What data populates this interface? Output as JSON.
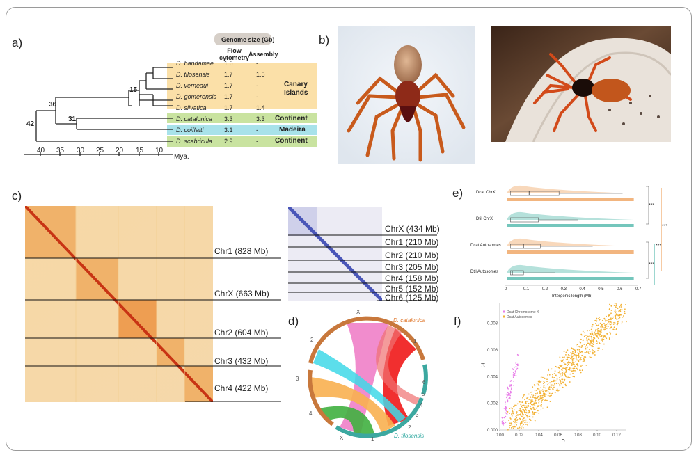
{
  "panels": {
    "a": "a)",
    "b": "b)",
    "c": "c)",
    "d": "d)",
    "e": "e)",
    "f": "f)"
  },
  "tree": {
    "genome_header": "Genome size (Gb)",
    "col_flow": "Flow\ncytometry",
    "col_flow_1": "Flow",
    "col_flow_2": "cytometry",
    "col_assembly": "Assembly",
    "species": [
      {
        "name": "D. bandamae",
        "flow": "1.6",
        "assembly": "-"
      },
      {
        "name": "D. tilosensis",
        "flow": "1.7",
        "assembly": "1.5"
      },
      {
        "name": "D. verneaui",
        "flow": "1.7",
        "assembly": "-"
      },
      {
        "name": "D. gomerensis",
        "flow": "1.7",
        "assembly": "-"
      },
      {
        "name": "D. silvatica",
        "flow": "1.7",
        "assembly": "1.4"
      },
      {
        "name": "D. catalonica",
        "flow": "3.3",
        "assembly": "3.3"
      },
      {
        "name": "D. coiffaiti",
        "flow": "3.1",
        "assembly": "-"
      },
      {
        "name": "D. scabricula",
        "flow": "2.9",
        "assembly": "-"
      }
    ],
    "regions": {
      "canary_1": "Canary",
      "canary_2": "Islands",
      "continent": "Continent",
      "madeira": "Madeira",
      "continent2": "Continent"
    },
    "node_ages": {
      "n42": "42",
      "n36": "36",
      "n31": "31",
      "n15": "15"
    },
    "axis_ticks": [
      "40",
      "35",
      "30",
      "25",
      "20",
      "15",
      "10"
    ],
    "axis_unit": "Mya.",
    "colors": {
      "canary": "#fbe0a8",
      "continent": "#c9e3a0",
      "madeira": "#a8e2ea",
      "header": "#d6cfc8"
    }
  },
  "hic_large": {
    "chromosomes": [
      "Chr1 (828 Mb)",
      "ChrX (663 Mb)",
      "Chr2 (604 Mb)",
      "Chr3 (432 Mb)",
      "Chr4 (422 Mb)"
    ]
  },
  "hic_small": {
    "chromosomes": [
      "ChrX (434 Mb)",
      "Chr1 (210 Mb)",
      "Chr2 (210 Mb)",
      "Chr3 (205 Mb)",
      "Chr4 (158 Mb)",
      "Chr5 (152 Mb)",
      "Chr6 (125 Mb)"
    ]
  },
  "circos": {
    "top_species": "D. catalonica",
    "bottom_species": "D. tilosensis",
    "top_labels": [
      "X",
      "1",
      "2",
      "3",
      "4"
    ],
    "bottom_labels": [
      "X",
      "1",
      "2",
      "3",
      "4",
      "5",
      "6"
    ]
  },
  "boxplot": {
    "groups": [
      "Dcat ChrX",
      "Dtil ChrX",
      "Dcat Autosomes",
      "Dtil Autosomes"
    ],
    "xlabel": "Intergenic length (Mb)",
    "xticks": [
      "0",
      "0.1",
      "0.2",
      "0.3",
      "0.4",
      "0.5",
      "0.6",
      "0.7"
    ],
    "sig": [
      "***",
      "***",
      "***",
      "***"
    ],
    "colors": {
      "dcat": "#f0a868",
      "dtil": "#5cbcb0"
    }
  },
  "chart_data": {
    "type": "scatter",
    "title": "",
    "xlabel": "ρ",
    "ylabel": "π",
    "xlim": [
      0,
      0.13
    ],
    "ylim": [
      0,
      0.0095
    ],
    "xticks": [
      "0.00",
      "0.02",
      "0.04",
      "0.06",
      "0.08",
      "0.10",
      "0.12"
    ],
    "yticks": [
      "0.000",
      "0.002",
      "0.004",
      "0.006",
      "0.008"
    ],
    "legend_position": "top-left",
    "series": [
      {
        "name": "Dcat Chromosome X",
        "color": "#e87ee8",
        "trend": {
          "x": [
            0.003,
            0.018
          ],
          "y": [
            0.0005,
            0.0053
          ]
        }
      },
      {
        "name": "Dcat Autosomes",
        "color": "#f2b134",
        "trend": {
          "x": [
            0.015,
            0.13
          ],
          "y": [
            0.0005,
            0.0095
          ]
        }
      }
    ]
  }
}
